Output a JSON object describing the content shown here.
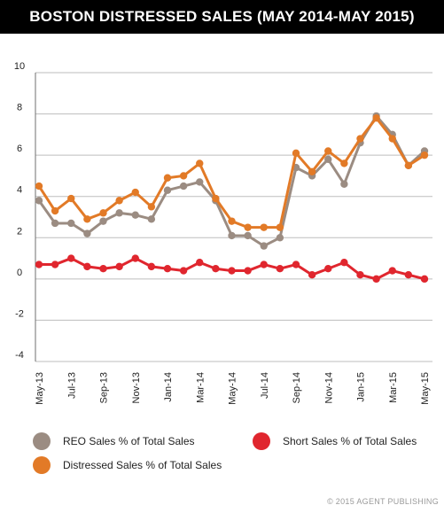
{
  "title": "BOSTON DISTRESSED SALES (MAY 2014-MAY 2015)",
  "copyright": "© 2015 AGENT PUBLISHING",
  "chart_data": {
    "type": "line",
    "title": "BOSTON DISTRESSED SALES (MAY 2014-MAY 2015)",
    "xlabel": "",
    "ylabel": "",
    "ylim": [
      -4,
      10
    ],
    "yticks": [
      "10",
      "8",
      "6",
      "4",
      "2",
      "0",
      "-2",
      "-4"
    ],
    "x_tick_labels": [
      "May-13",
      "Jul-13",
      "Sep-13",
      "Nov-13",
      "Jan-14",
      "Mar-14",
      "May-14",
      "Jul-14",
      "Sep-14",
      "Nov-14",
      "Jan-15",
      "Mar-15",
      "May-15"
    ],
    "x": [
      "May-13",
      "Jun-13",
      "Jul-13",
      "Aug-13",
      "Sep-13",
      "Oct-13",
      "Nov-13",
      "Dec-13",
      "Jan-14",
      "Feb-14",
      "Mar-14",
      "Apr-14",
      "May-14",
      "Jun-14",
      "Jul-14",
      "Aug-14",
      "Sep-14",
      "Oct-14",
      "Nov-14",
      "Dec-14",
      "Jan-15",
      "Feb-15",
      "Mar-15",
      "Apr-15",
      "May-15"
    ],
    "grid": "horizontal",
    "legend_position": "bottom",
    "series": [
      {
        "name": "REO Sales % of Total Sales",
        "color": "#9b8c82",
        "values": [
          3.8,
          2.7,
          2.7,
          2.2,
          2.8,
          3.2,
          3.1,
          2.9,
          4.3,
          4.5,
          4.7,
          3.8,
          2.1,
          2.1,
          1.6,
          2.0,
          5.4,
          5.0,
          5.8,
          4.6,
          6.6,
          7.9,
          7.0,
          5.5,
          6.2
        ]
      },
      {
        "name": "Distressed Sales % of Total Sales",
        "color": "#e27a27",
        "values": [
          4.5,
          3.3,
          3.9,
          2.9,
          3.2,
          3.8,
          4.2,
          3.5,
          4.9,
          5.0,
          5.6,
          3.9,
          2.8,
          2.5,
          2.5,
          2.5,
          6.1,
          5.2,
          6.2,
          5.6,
          6.8,
          7.8,
          6.8,
          5.5,
          6.0
        ]
      },
      {
        "name": "Short Sales % of Total Sales",
        "color": "#e0262e",
        "values": [
          0.7,
          0.7,
          1.0,
          0.6,
          0.5,
          0.6,
          1.0,
          0.6,
          0.5,
          0.4,
          0.8,
          0.5,
          0.4,
          0.4,
          0.7,
          0.5,
          0.7,
          0.2,
          0.5,
          0.8,
          0.2,
          0.0,
          0.4,
          0.2,
          0.0
        ]
      }
    ]
  }
}
